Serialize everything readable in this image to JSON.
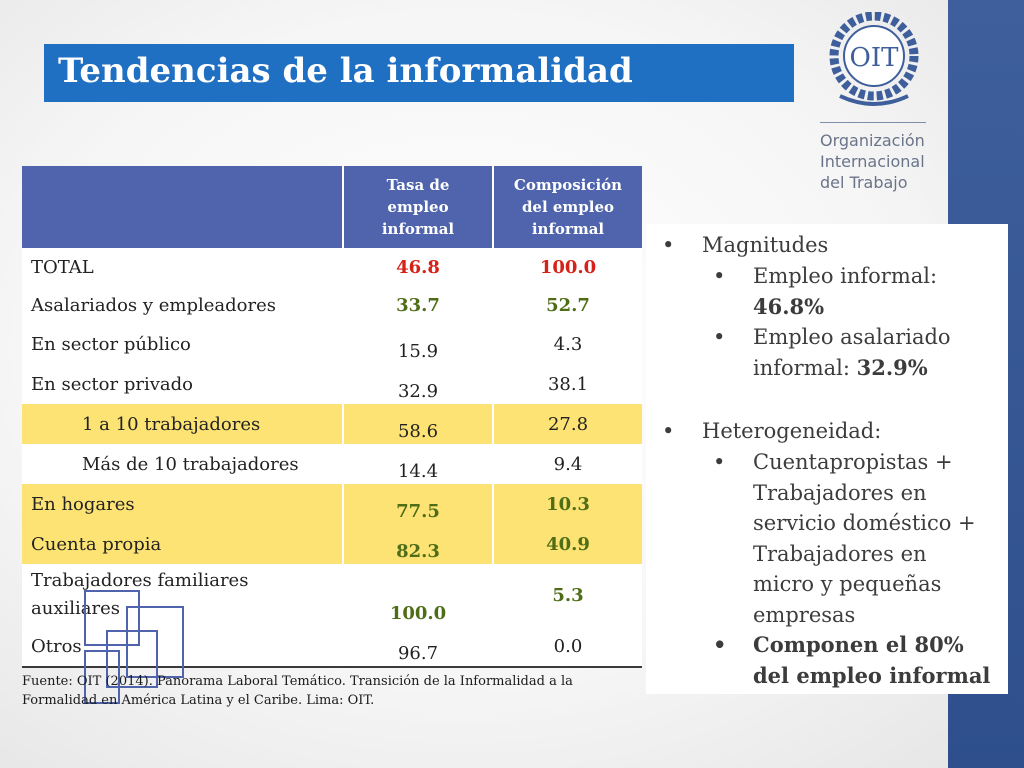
{
  "title": "Tendencias de la informalidad",
  "organization": {
    "logo_text": "OIT",
    "name_lines": [
      "Organización",
      "Internacional",
      "del Trabajo"
    ]
  },
  "table": {
    "headers": [
      "",
      "Tasa de empleo informal",
      "Composición del empleo informal"
    ],
    "header_lines": {
      "col2": [
        "Tasa de",
        "empleo",
        "informal"
      ],
      "col3": [
        "Composición",
        "del empleo",
        "informal"
      ]
    },
    "rows": [
      {
        "label": "TOTAL",
        "tasa": "46.8",
        "composicion": "100.0"
      },
      {
        "label": "Asalariados y empleadores",
        "tasa": "33.7",
        "composicion": "52.7"
      },
      {
        "label": "En sector público",
        "tasa": "15.9",
        "composicion": "4.3"
      },
      {
        "label": "En sector privado",
        "tasa": "32.9",
        "composicion": "38.1"
      },
      {
        "label": "1 a 10 trabajadores",
        "tasa": "58.6",
        "composicion": "27.8"
      },
      {
        "label": "Más de 10 trabajadores",
        "tasa": "14.4",
        "composicion": "9.4"
      },
      {
        "label": "En hogares",
        "tasa": "77.5",
        "composicion": "10.3"
      },
      {
        "label": "Cuenta propia",
        "tasa": "82.3",
        "composicion": "40.9"
      },
      {
        "label": "Trabajadores familiares auxiliares",
        "label_lines": [
          "Trabajadores familiares",
          "auxiliares"
        ],
        "tasa": "100.0",
        "composicion": "5.3"
      },
      {
        "label": "Otros",
        "tasa": "96.7",
        "composicion": "0.0"
      }
    ]
  },
  "source": {
    "line1": "Fuente: OIT (2014). Panorama Laboral Temático. Transición de la Informalidad a la",
    "line2": "Formalidad en América Latina y el Caribe. Lima: OIT."
  },
  "bullets": {
    "magnitudes": {
      "label": "Magnitudes",
      "sub1": {
        "prefix": "Empleo informal:",
        "value": "46.8%"
      },
      "sub2": {
        "prefix_line1": "Empleo asalariado",
        "prefix_line2": "informal: ",
        "value": "32.9%"
      }
    },
    "heterogeneidad": {
      "label": "Heterogeneidad:",
      "sub1_lines": [
        "Cuentapropistas +",
        "Trabajadores en",
        "servicio doméstico +",
        "Trabajadores en",
        "micro y pequeñas",
        "empresas"
      ],
      "sub2_lines": [
        "Componen el 80%",
        "del empleo informal"
      ]
    }
  },
  "colors": {
    "title_bg": "#1f6fc3",
    "right_bar": "#3e5f9c",
    "table_header": "#4f64ad",
    "highlight_row": "#fde373",
    "red_value": "#d62218",
    "green_value": "#4f6d17"
  }
}
